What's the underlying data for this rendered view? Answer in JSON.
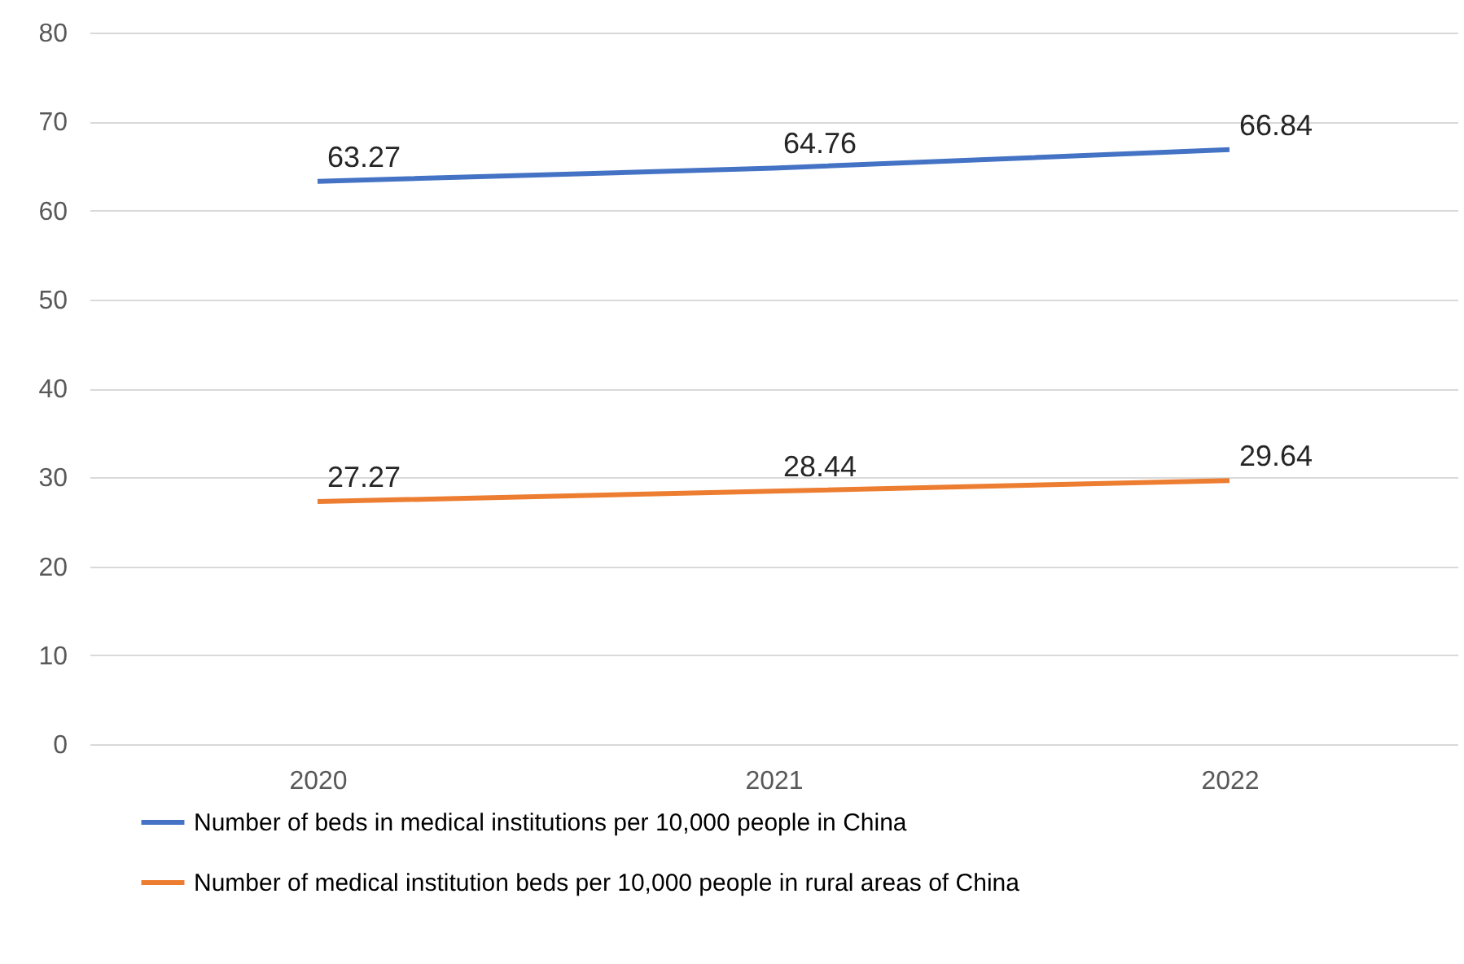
{
  "chart_data": {
    "type": "line",
    "categories": [
      "2020",
      "2021",
      "2022"
    ],
    "series": [
      {
        "name": "Number of beds in medical institutions per 10,000 people in China",
        "color": "#4472c4",
        "values": [
          63.27,
          64.76,
          66.84
        ]
      },
      {
        "name": "Number of medical institution beds per 10,000 people in rural areas of China",
        "color": "#ed7d31",
        "values": [
          27.27,
          28.44,
          29.64
        ]
      }
    ],
    "ylim": [
      0,
      80
    ],
    "yticks": [
      0,
      10,
      20,
      30,
      40,
      50,
      60,
      70,
      80
    ],
    "grid": "y",
    "legend": "bottom",
    "data_labels": true,
    "marker": "none",
    "line_style": "solid"
  }
}
